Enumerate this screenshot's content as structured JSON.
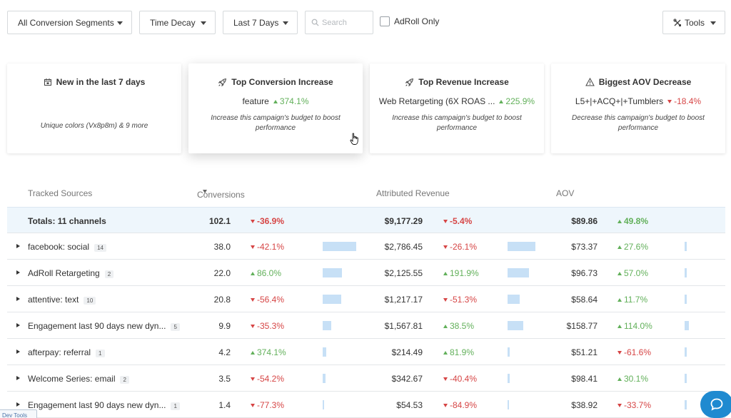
{
  "toolbar": {
    "segments": "All Conversion Segments",
    "model": "Time Decay",
    "range": "Last 7 Days",
    "search_placeholder": "Search",
    "adroll_only": "AdRoll Only",
    "tools": "Tools"
  },
  "cards": [
    {
      "title": "New in the last 7 days",
      "icon": "calendar-icon",
      "desc": "Unique colors (Vx8p8m) & 9 more"
    },
    {
      "title": "Top Conversion Increase",
      "icon": "rocket-icon",
      "value": "feature",
      "change": "374.1%",
      "dir": "up",
      "desc": "Increase this campaign's budget to boost performance"
    },
    {
      "title": "Top Revenue Increase",
      "icon": "rocket-icon",
      "value": "Web Retargeting (6X ROAS ...",
      "change": "225.9%",
      "dir": "up",
      "desc": "Increase this campaign's budget to boost performance"
    },
    {
      "title": "Biggest AOV Decrease",
      "icon": "warning-icon",
      "value": "L5+|+ACQ+|+Tumblers",
      "change": "-18.4%",
      "dir": "down",
      "desc": "Decrease this campaign's budget to boost performance"
    }
  ],
  "table": {
    "headers": {
      "source": "Tracked Sources",
      "conversions": "Conversions",
      "revenue": "Attributed Revenue",
      "aov": "AOV"
    },
    "totals": {
      "label": "Totals: 11 channels",
      "conv": "102.1",
      "conv_chg": "-36.9%",
      "conv_dir": "down",
      "rev": "$9,177.29",
      "rev_chg": "-5.4%",
      "rev_dir": "down",
      "aov": "$89.86",
      "aov_chg": "49.8%",
      "aov_dir": "up"
    },
    "rows": [
      {
        "name": "facebook: social",
        "badge": "14",
        "conv": "38.0",
        "conv_chg": "-42.1%",
        "conv_dir": "down",
        "conv_share": 0.47,
        "rev": "$2,786.45",
        "rev_chg": "-26.1%",
        "rev_dir": "down",
        "rev_share": 0.39,
        "aov": "$73.37",
        "aov_chg": "27.6%",
        "aov_dir": "up",
        "aov_share": 0.03
      },
      {
        "name": "AdRoll Retargeting",
        "badge": "2",
        "conv": "22.0",
        "conv_chg": "86.0%",
        "conv_dir": "up",
        "conv_share": 0.27,
        "rev": "$2,125.55",
        "rev_chg": "191.9%",
        "rev_dir": "up",
        "rev_share": 0.3,
        "aov": "$96.73",
        "aov_chg": "57.0%",
        "aov_dir": "up",
        "aov_share": 0.03
      },
      {
        "name": "attentive: text",
        "badge": "10",
        "conv": "20.8",
        "conv_chg": "-56.4%",
        "conv_dir": "down",
        "conv_share": 0.26,
        "rev": "$1,217.17",
        "rev_chg": "-51.3%",
        "rev_dir": "down",
        "rev_share": 0.17,
        "aov": "$58.64",
        "aov_chg": "11.7%",
        "aov_dir": "up",
        "aov_share": 0.03
      },
      {
        "name": "Engagement last 90 days new dyn...",
        "badge": "5",
        "conv": "9.9",
        "conv_chg": "-35.3%",
        "conv_dir": "down",
        "conv_share": 0.12,
        "rev": "$1,567.81",
        "rev_chg": "38.5%",
        "rev_dir": "up",
        "rev_share": 0.22,
        "aov": "$158.77",
        "aov_chg": "114.0%",
        "aov_dir": "up",
        "aov_share": 0.06
      },
      {
        "name": "afterpay: referral",
        "badge": "1",
        "conv": "4.2",
        "conv_chg": "374.1%",
        "conv_dir": "up",
        "conv_share": 0.05,
        "rev": "$214.49",
        "rev_chg": "81.9%",
        "rev_dir": "up",
        "rev_share": 0.03,
        "aov": "$51.21",
        "aov_chg": "-61.6%",
        "aov_dir": "down",
        "aov_share": 0.03
      },
      {
        "name": "Welcome Series: email",
        "badge": "2",
        "conv": "3.5",
        "conv_chg": "-54.2%",
        "conv_dir": "down",
        "conv_share": 0.04,
        "rev": "$342.67",
        "rev_chg": "-40.4%",
        "rev_dir": "down",
        "rev_share": 0.03,
        "aov": "$98.41",
        "aov_chg": "30.1%",
        "aov_dir": "up",
        "aov_share": 0.03
      },
      {
        "name": "Engagement last 90 days new dyn...",
        "badge": "1",
        "conv": "1.4",
        "conv_chg": "-77.3%",
        "conv_dir": "down",
        "conv_share": 0.02,
        "rev": "$54.53",
        "rev_chg": "-84.9%",
        "rev_dir": "down",
        "rev_share": 0.01,
        "aov": "$38.92",
        "aov_chg": "-33.7%",
        "aov_dir": "down",
        "aov_share": 0.03
      }
    ]
  },
  "devtools": "Dev Tools",
  "colors": {
    "up": "#62b05a",
    "down": "#d64545",
    "bar": "#c7e0f6",
    "total_bg": "#eef6fc",
    "chat": "#1f8ad0"
  }
}
